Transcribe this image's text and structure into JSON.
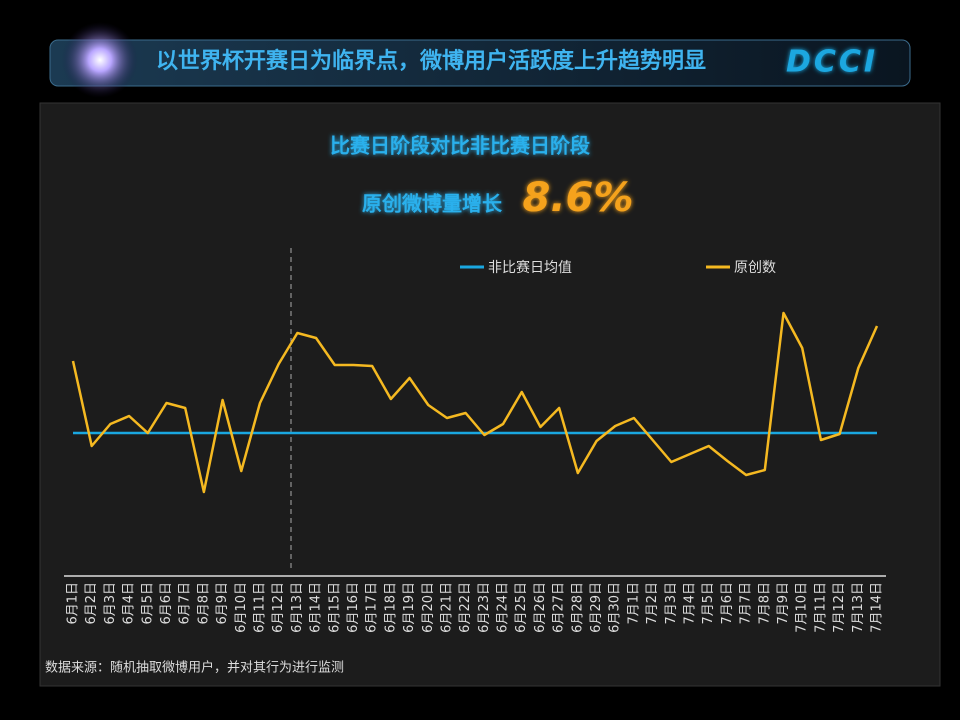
{
  "header": {
    "title": "以世界杯开赛日为临界点，微博用户活跃度上升趋势明显",
    "logo": "DCCI"
  },
  "chart_data": {
    "type": "line",
    "headline": "比赛日阶段对比非比赛日阶段",
    "growth_label": "原创微博量增长",
    "growth_value": "8.6%",
    "categories": [
      "6月1日",
      "6月2日",
      "6月3日",
      "6月4日",
      "6月5日",
      "6月6日",
      "6月7日",
      "6月8日",
      "6月9日",
      "6月10日",
      "6月11日",
      "6月12日",
      "6月13日",
      "6月14日",
      "6月15日",
      "6月16日",
      "6月17日",
      "6月18日",
      "6月19日",
      "6月20日",
      "6月21日",
      "6月22日",
      "6月23日",
      "6月24日",
      "6月25日",
      "6月26日",
      "6月27日",
      "6月28日",
      "6月29日",
      "6月30日",
      "7月1日",
      "7月2日",
      "7月3日",
      "7月4日",
      "7月5日",
      "7月6日",
      "7月7日",
      "7月8日",
      "7月9日",
      "7月10日",
      "7月11日",
      "7月12日",
      "7月13日",
      "7月14日"
    ],
    "reference": {
      "name": "非比赛日均值",
      "color": "#1aa7e0",
      "value": 143
    },
    "series": [
      {
        "name": "原创数",
        "color": "#f5b921",
        "values": [
          215,
          130,
          152,
          160,
          143,
          173,
          168,
          84,
          176,
          105,
          173,
          212,
          243,
          238,
          211,
          211,
          210,
          177,
          198,
          171,
          158,
          163,
          141,
          152,
          184,
          149,
          168,
          103,
          135,
          150,
          158,
          136,
          114,
          122,
          130,
          115,
          101,
          106,
          263,
          228,
          136,
          142,
          208,
          250
        ]
      }
    ],
    "source": "数据来源：随机抽取微博用户，并对其行为进行监测"
  }
}
